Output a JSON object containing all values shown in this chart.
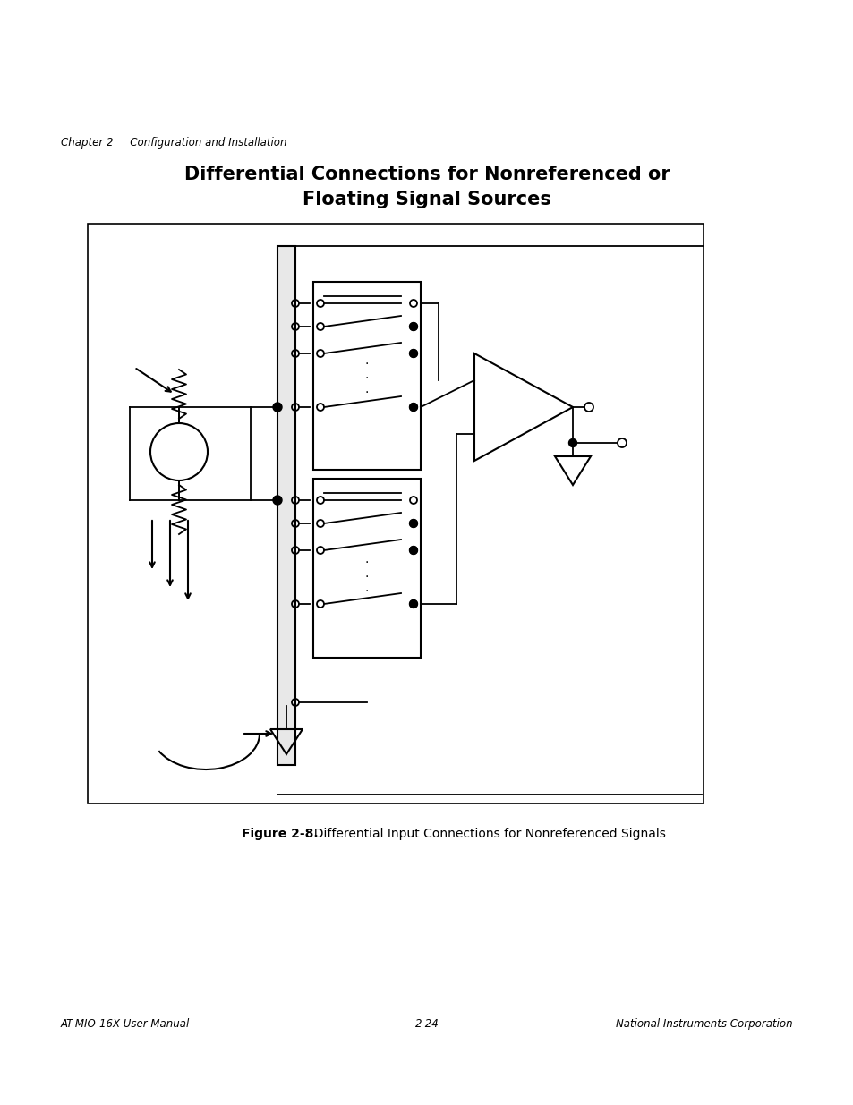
{
  "page_title_line1": "Differential Connections for Nonreferenced or",
  "page_title_line2": "Floating Signal Sources",
  "chapter_header": "Chapter 2     Configuration and Installation",
  "footer_left": "AT-MIO-16X User Manual",
  "footer_center": "2-24",
  "footer_right": "National Instruments Corporation",
  "figure_caption_bold": "Figure 2-8.",
  "figure_caption_normal": "  Differential Input Connections for Nonreferenced Signals",
  "bg_color": "#ffffff",
  "line_color": "#000000",
  "title_fontsize": 15,
  "header_fontsize": 8.5,
  "footer_fontsize": 8.5,
  "caption_fontsize": 10
}
